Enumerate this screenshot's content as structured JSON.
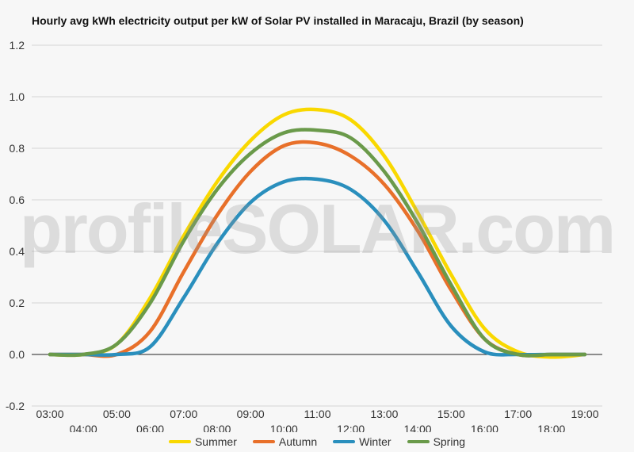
{
  "chart_data": {
    "type": "line",
    "title": "Hourly avg kWh electricity output per kW of Solar PV installed in Maracaju, Brazil (by season)",
    "watermark": "profileSOLAR.com",
    "x": [
      "03:00",
      "04:00",
      "05:00",
      "06:00",
      "07:00",
      "08:00",
      "09:00",
      "10:00",
      "11:00",
      "12:00",
      "13:00",
      "14:00",
      "15:00",
      "16:00",
      "17:00",
      "18:00",
      "19:00"
    ],
    "ylim": [
      -0.2,
      1.2
    ],
    "yticks": [
      -0.2,
      0.0,
      0.2,
      0.4,
      0.6,
      0.8,
      1.0,
      1.2
    ],
    "grid": true,
    "legend_position": "bottom",
    "series": [
      {
        "name": "Summer",
        "color": "#f9d800",
        "values": [
          0,
          0,
          0.04,
          0.22,
          0.46,
          0.67,
          0.83,
          0.93,
          0.95,
          0.91,
          0.77,
          0.55,
          0.31,
          0.1,
          0.01,
          -0.01,
          0
        ]
      },
      {
        "name": "Autumn",
        "color": "#e8702a",
        "values": [
          0,
          0,
          0,
          0.09,
          0.32,
          0.54,
          0.71,
          0.81,
          0.82,
          0.77,
          0.66,
          0.48,
          0.25,
          0.06,
          0,
          0,
          0
        ]
      },
      {
        "name": "Winter",
        "color": "#2a8fbd",
        "values": [
          0,
          0,
          0,
          0.03,
          0.22,
          0.43,
          0.59,
          0.67,
          0.68,
          0.64,
          0.52,
          0.32,
          0.11,
          0.01,
          0,
          0,
          0
        ]
      },
      {
        "name": "Spring",
        "color": "#6a9a4a",
        "values": [
          0,
          0,
          0.04,
          0.2,
          0.44,
          0.64,
          0.78,
          0.86,
          0.87,
          0.84,
          0.71,
          0.51,
          0.27,
          0.06,
          0,
          0,
          0
        ]
      }
    ]
  }
}
